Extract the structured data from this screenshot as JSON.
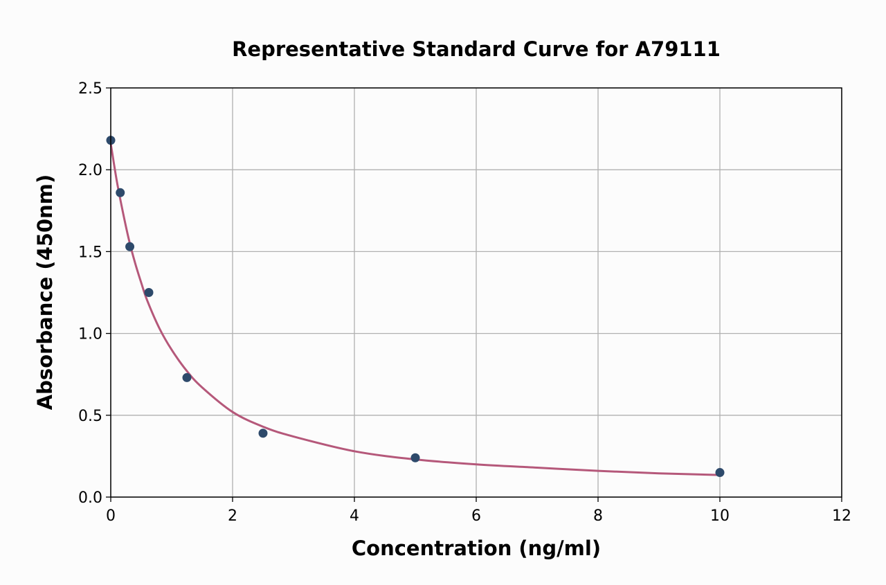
{
  "chart_data": {
    "type": "scatter",
    "title": "Representative Standard Curve for A79111",
    "xlabel": "Concentration (ng/ml)",
    "ylabel": "Absorbance (450nm)",
    "xlim": [
      0,
      12
    ],
    "ylim": [
      0,
      2.5
    ],
    "x_ticks": [
      0,
      2,
      4,
      6,
      8,
      10,
      12
    ],
    "y_ticks": [
      0.0,
      0.5,
      1.0,
      1.5,
      2.0,
      2.5
    ],
    "x_tick_labels": [
      "0",
      "2",
      "4",
      "6",
      "8",
      "10",
      "12"
    ],
    "y_tick_labels": [
      "0.0",
      "0.5",
      "1.0",
      "1.5",
      "2.0",
      "2.5"
    ],
    "grid": true,
    "legend": "none",
    "series": [
      {
        "kind": "points",
        "x": [
          0,
          0.156,
          0.313,
          0.625,
          1.25,
          2.5,
          5,
          10
        ],
        "y": [
          2.18,
          1.86,
          1.53,
          1.25,
          0.73,
          0.39,
          0.24,
          0.15
        ],
        "color": "#2e4a6b"
      },
      {
        "kind": "fitted-curve",
        "x": [
          0,
          0.1,
          0.2,
          0.3,
          0.4,
          0.5,
          0.6,
          0.8,
          1.0,
          1.25,
          1.5,
          2.0,
          2.5,
          3.0,
          4.0,
          5.0,
          6.0,
          7.0,
          8.0,
          9.0,
          10.0
        ],
        "y": [
          2.16,
          1.93,
          1.74,
          1.57,
          1.43,
          1.31,
          1.2,
          1.03,
          0.9,
          0.77,
          0.67,
          0.52,
          0.43,
          0.37,
          0.28,
          0.23,
          0.2,
          0.18,
          0.16,
          0.145,
          0.135
        ],
        "color": "#b5587a"
      }
    ]
  }
}
